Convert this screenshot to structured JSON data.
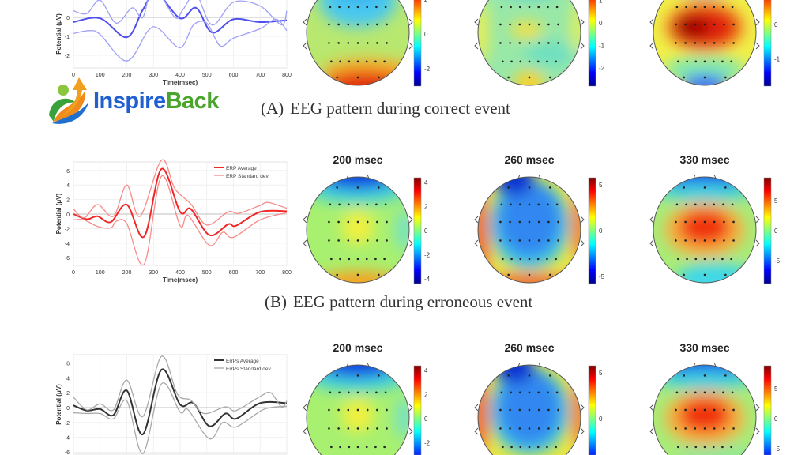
{
  "logo": {
    "part1": "Inspire",
    "part2": "Back"
  },
  "captions": [
    {
      "label": "(A)",
      "text": "EEG pattern during correct event"
    },
    {
      "label": "(B)",
      "text": "EEG pattern during erroneous event"
    }
  ],
  "colors": {
    "row_a_avg": "#5050ee",
    "row_a_std": "#a0a0f8",
    "row_b_avg": "#f02828",
    "row_b_std": "#f88a8a",
    "row_c_avg": "#333333",
    "row_c_std": "#a8a8a8"
  },
  "chart_data": [
    {
      "type": "line",
      "xlabel": "Time(msec)",
      "ylabel": "Potential (μV)",
      "xlim": [
        0,
        800
      ],
      "ylim": [
        -2.6,
        1.5
      ],
      "xticks": [
        "0",
        "100",
        "200",
        "300",
        "400",
        "500",
        "600",
        "700",
        "800"
      ],
      "yticks": [
        "0",
        "-1",
        "-2"
      ],
      "legend": [],
      "series": [
        {
          "name": "average",
          "points": [
            [
              0,
              -0.25
            ],
            [
              100,
              -0.05
            ],
            [
              200,
              -1.05
            ],
            [
              260,
              0.4
            ],
            [
              310,
              1.3
            ],
            [
              400,
              -0.05
            ],
            [
              460,
              0.5
            ],
            [
              520,
              -0.8
            ],
            [
              600,
              -0.1
            ],
            [
              700,
              -0.25
            ],
            [
              800,
              -0.15
            ]
          ]
        },
        {
          "name": "std-upper",
          "points": [
            [
              0,
              0.35
            ],
            [
              50,
              0.2
            ],
            [
              100,
              0.9
            ],
            [
              160,
              -0.3
            ],
            [
              220,
              0.5
            ],
            [
              260,
              0.0
            ],
            [
              300,
              1.6
            ],
            [
              380,
              0.0
            ],
            [
              410,
              0.4
            ],
            [
              460,
              1.2
            ],
            [
              520,
              -0.4
            ],
            [
              600,
              0.8
            ],
            [
              700,
              0.6
            ],
            [
              780,
              -0.4
            ],
            [
              800,
              0.35
            ]
          ]
        },
        {
          "name": "std-lower",
          "points": [
            [
              0,
              -0.85
            ],
            [
              60,
              -0.7
            ],
            [
              100,
              -0.9
            ],
            [
              200,
              -2.3
            ],
            [
              280,
              -0.7
            ],
            [
              320,
              -0.6
            ],
            [
              400,
              -1.6
            ],
            [
              450,
              -0.4
            ],
            [
              500,
              -0.3
            ],
            [
              550,
              -1.5
            ],
            [
              600,
              -1.1
            ],
            [
              700,
              -0.6
            ],
            [
              760,
              -0.1
            ],
            [
              800,
              -0.7
            ]
          ]
        }
      ]
    },
    {
      "type": "line",
      "xlabel": "Time(msec)",
      "ylabel": "Potential (μV)",
      "xlim": [
        0,
        800
      ],
      "ylim": [
        -7.2,
        7.2
      ],
      "xticks": [
        "0",
        "100",
        "200",
        "300",
        "400",
        "500",
        "600",
        "700",
        "800"
      ],
      "yticks": [
        "6",
        "4",
        "2",
        "0",
        "-2",
        "-4",
        "-6"
      ],
      "legend": [
        "ERP Average",
        "ERP Standard dev."
      ],
      "series": [
        {
          "name": "average",
          "points": [
            [
              0,
              0
            ],
            [
              50,
              -0.7
            ],
            [
              90,
              -0.3
            ],
            [
              140,
              -1.1
            ],
            [
              200,
              1.3
            ],
            [
              265,
              -3.1
            ],
            [
              330,
              6.2
            ],
            [
              400,
              0.3
            ],
            [
              440,
              0.7
            ],
            [
              510,
              -2.9
            ],
            [
              580,
              -1.4
            ],
            [
              610,
              -1.6
            ],
            [
              700,
              0.3
            ],
            [
              800,
              0.4
            ]
          ]
        },
        {
          "name": "std-upper",
          "points": [
            [
              0,
              0.7
            ],
            [
              40,
              -0.5
            ],
            [
              90,
              1.3
            ],
            [
              150,
              -0.3
            ],
            [
              200,
              4
            ],
            [
              250,
              -0.3
            ],
            [
              330,
              7.4
            ],
            [
              380,
              3.5
            ],
            [
              440,
              1.4
            ],
            [
              500,
              -1.5
            ],
            [
              580,
              0.3
            ],
            [
              620,
              0.1
            ],
            [
              700,
              1.2
            ],
            [
              730,
              1.6
            ],
            [
              800,
              0.8
            ]
          ]
        },
        {
          "name": "std-lower",
          "points": [
            [
              0,
              -0.8
            ],
            [
              40,
              -0.8
            ],
            [
              90,
              -1.7
            ],
            [
              140,
              -1.9
            ],
            [
              160,
              -1
            ],
            [
              200,
              -1.3
            ],
            [
              265,
              -6.9
            ],
            [
              330,
              5.2
            ],
            [
              400,
              -1.6
            ],
            [
              430,
              -0.2
            ],
            [
              510,
              -4.3
            ],
            [
              560,
              -2.5
            ],
            [
              600,
              -3.2
            ],
            [
              700,
              -0.8
            ],
            [
              800,
              0.2
            ]
          ]
        }
      ]
    },
    {
      "type": "line",
      "xlabel": "",
      "ylabel": "Potential (μV)",
      "xlim": [
        0,
        800
      ],
      "ylim": [
        -7.2,
        7.2
      ],
      "xticks": [],
      "yticks": [
        "6",
        "4",
        "2",
        "0",
        "-2",
        "-4",
        "-6"
      ],
      "legend": [
        "ErrPs Average",
        "ErrPs Standard dev."
      ],
      "series": [
        {
          "name": "average",
          "points": [
            [
              0,
              0.3
            ],
            [
              50,
              -0.4
            ],
            [
              100,
              -0.2
            ],
            [
              150,
              -1
            ],
            [
              200,
              2.3
            ],
            [
              260,
              -3.6
            ],
            [
              330,
              5.1
            ],
            [
              400,
              0.4
            ],
            [
              450,
              0.6
            ],
            [
              510,
              -2.5
            ],
            [
              570,
              -0.8
            ],
            [
              610,
              -1.5
            ],
            [
              700,
              0.6
            ],
            [
              800,
              0.6
            ]
          ]
        },
        {
          "name": "std-upper",
          "points": [
            [
              0,
              1.4
            ],
            [
              50,
              -0.3
            ],
            [
              100,
              0.5
            ],
            [
              150,
              -0.3
            ],
            [
              200,
              3.7
            ],
            [
              260,
              -1.2
            ],
            [
              330,
              6.9
            ],
            [
              390,
              1.8
            ],
            [
              440,
              1.0
            ],
            [
              490,
              -0.8
            ],
            [
              570,
              0.1
            ],
            [
              610,
              -0.4
            ],
            [
              700,
              1.5
            ],
            [
              740,
              2.0
            ],
            [
              780,
              0.1
            ],
            [
              800,
              0.9
            ]
          ]
        },
        {
          "name": "std-lower",
          "points": [
            [
              0,
              -0.7
            ],
            [
              50,
              -0.8
            ],
            [
              100,
              -0.8
            ],
            [
              150,
              -1.5
            ],
            [
              200,
              0.9
            ],
            [
              260,
              -6.2
            ],
            [
              330,
              3.2
            ],
            [
              400,
              -0.6
            ],
            [
              430,
              -0.3
            ],
            [
              510,
              -4.2
            ],
            [
              560,
              -2
            ],
            [
              610,
              -2.6
            ],
            [
              700,
              -0.5
            ],
            [
              740,
              0
            ],
            [
              800,
              0.2
            ]
          ]
        }
      ]
    }
  ],
  "topomaps": [
    [
      {
        "title": "",
        "range": [
          -3,
          3.1
        ],
        "ticks": [
          "2",
          "0",
          "-2"
        ],
        "tick_values": [
          2,
          0,
          -2
        ]
      },
      {
        "title": "",
        "range": [
          -2.8,
          1.9
        ],
        "ticks": [
          "1",
          "0",
          "-1",
          "-2"
        ],
        "tick_values": [
          1,
          0,
          -1,
          -2
        ]
      },
      {
        "title": "",
        "range": [
          -1.8,
          1.3
        ],
        "ticks": [
          "1",
          "0",
          "-1"
        ],
        "tick_values": [
          1,
          0,
          -1
        ]
      }
    ],
    [
      {
        "title": "200 msec",
        "range": [
          -4.4,
          4.4
        ],
        "ticks": [
          "4",
          "2",
          "0",
          "-2",
          "-4"
        ],
        "tick_values": [
          4,
          2,
          0,
          -2,
          -4
        ]
      },
      {
        "title": "260 msec",
        "range": [
          -5.8,
          5.8
        ],
        "ticks": [
          "5",
          "0",
          "-5"
        ],
        "tick_values": [
          5,
          0,
          -5
        ]
      },
      {
        "title": "330 msec",
        "range": [
          -8.8,
          8.8
        ],
        "ticks": [
          "5",
          "0",
          "-5"
        ],
        "tick_values": [
          5,
          0,
          -5
        ]
      }
    ],
    [
      {
        "title": "200 msec",
        "range": [
          -4.4,
          4.4
        ],
        "ticks": [
          "4",
          "2",
          "0",
          "-2"
        ],
        "tick_values": [
          4,
          2,
          0,
          -2
        ]
      },
      {
        "title": "260 msec",
        "range": [
          -5.8,
          5.8
        ],
        "ticks": [
          "5",
          "0"
        ],
        "tick_values": [
          5,
          0
        ]
      },
      {
        "title": "330 msec",
        "range": [
          -8.8,
          8.8
        ],
        "ticks": [
          "5",
          "0",
          "-5"
        ],
        "tick_values": [
          5,
          0,
          -5
        ]
      }
    ]
  ]
}
